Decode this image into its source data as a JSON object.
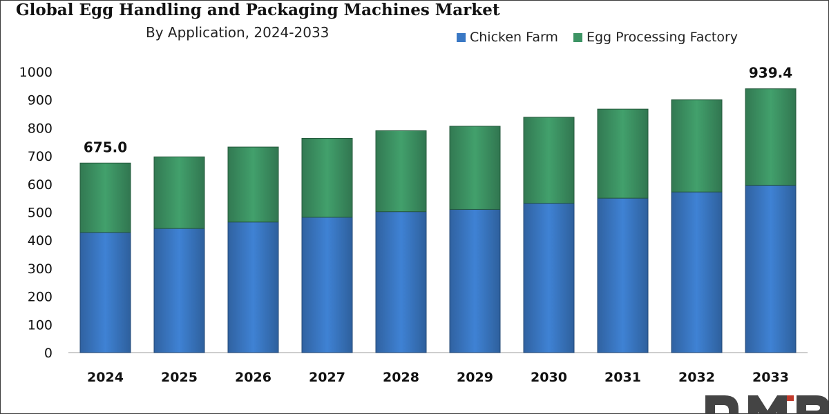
{
  "chart_data": {
    "type": "bar",
    "stacked": true,
    "title": "Global Egg Handling and Packaging Machines Market",
    "subtitle": "By Application, 2024-2033",
    "categories": [
      "2024",
      "2025",
      "2026",
      "2027",
      "2028",
      "2029",
      "2030",
      "2031",
      "2032",
      "2033"
    ],
    "series": [
      {
        "name": "Chicken Farm",
        "color": "#3a78c4",
        "values": [
          428,
          442,
          465,
          482,
          502,
          510,
          532,
          550,
          572,
          596
        ]
      },
      {
        "name": "Egg Processing Factory",
        "color": "#3d9464",
        "values": [
          247,
          255,
          267,
          281,
          288,
          296,
          306,
          317,
          328,
          343.4
        ]
      }
    ],
    "totals_labels": [
      {
        "category": "2024",
        "label": "675.0"
      },
      {
        "category": "2033",
        "label": "939.4"
      }
    ],
    "ylim": [
      0,
      1000
    ],
    "yticks": [
      0,
      100,
      200,
      300,
      400,
      500,
      600,
      700,
      800,
      900,
      1000
    ],
    "xlabel": "",
    "ylabel": "",
    "grid": false,
    "legend_position": "top-right"
  },
  "brand": {
    "logo_color": "#444444",
    "logo_accent": "#c0392b"
  }
}
